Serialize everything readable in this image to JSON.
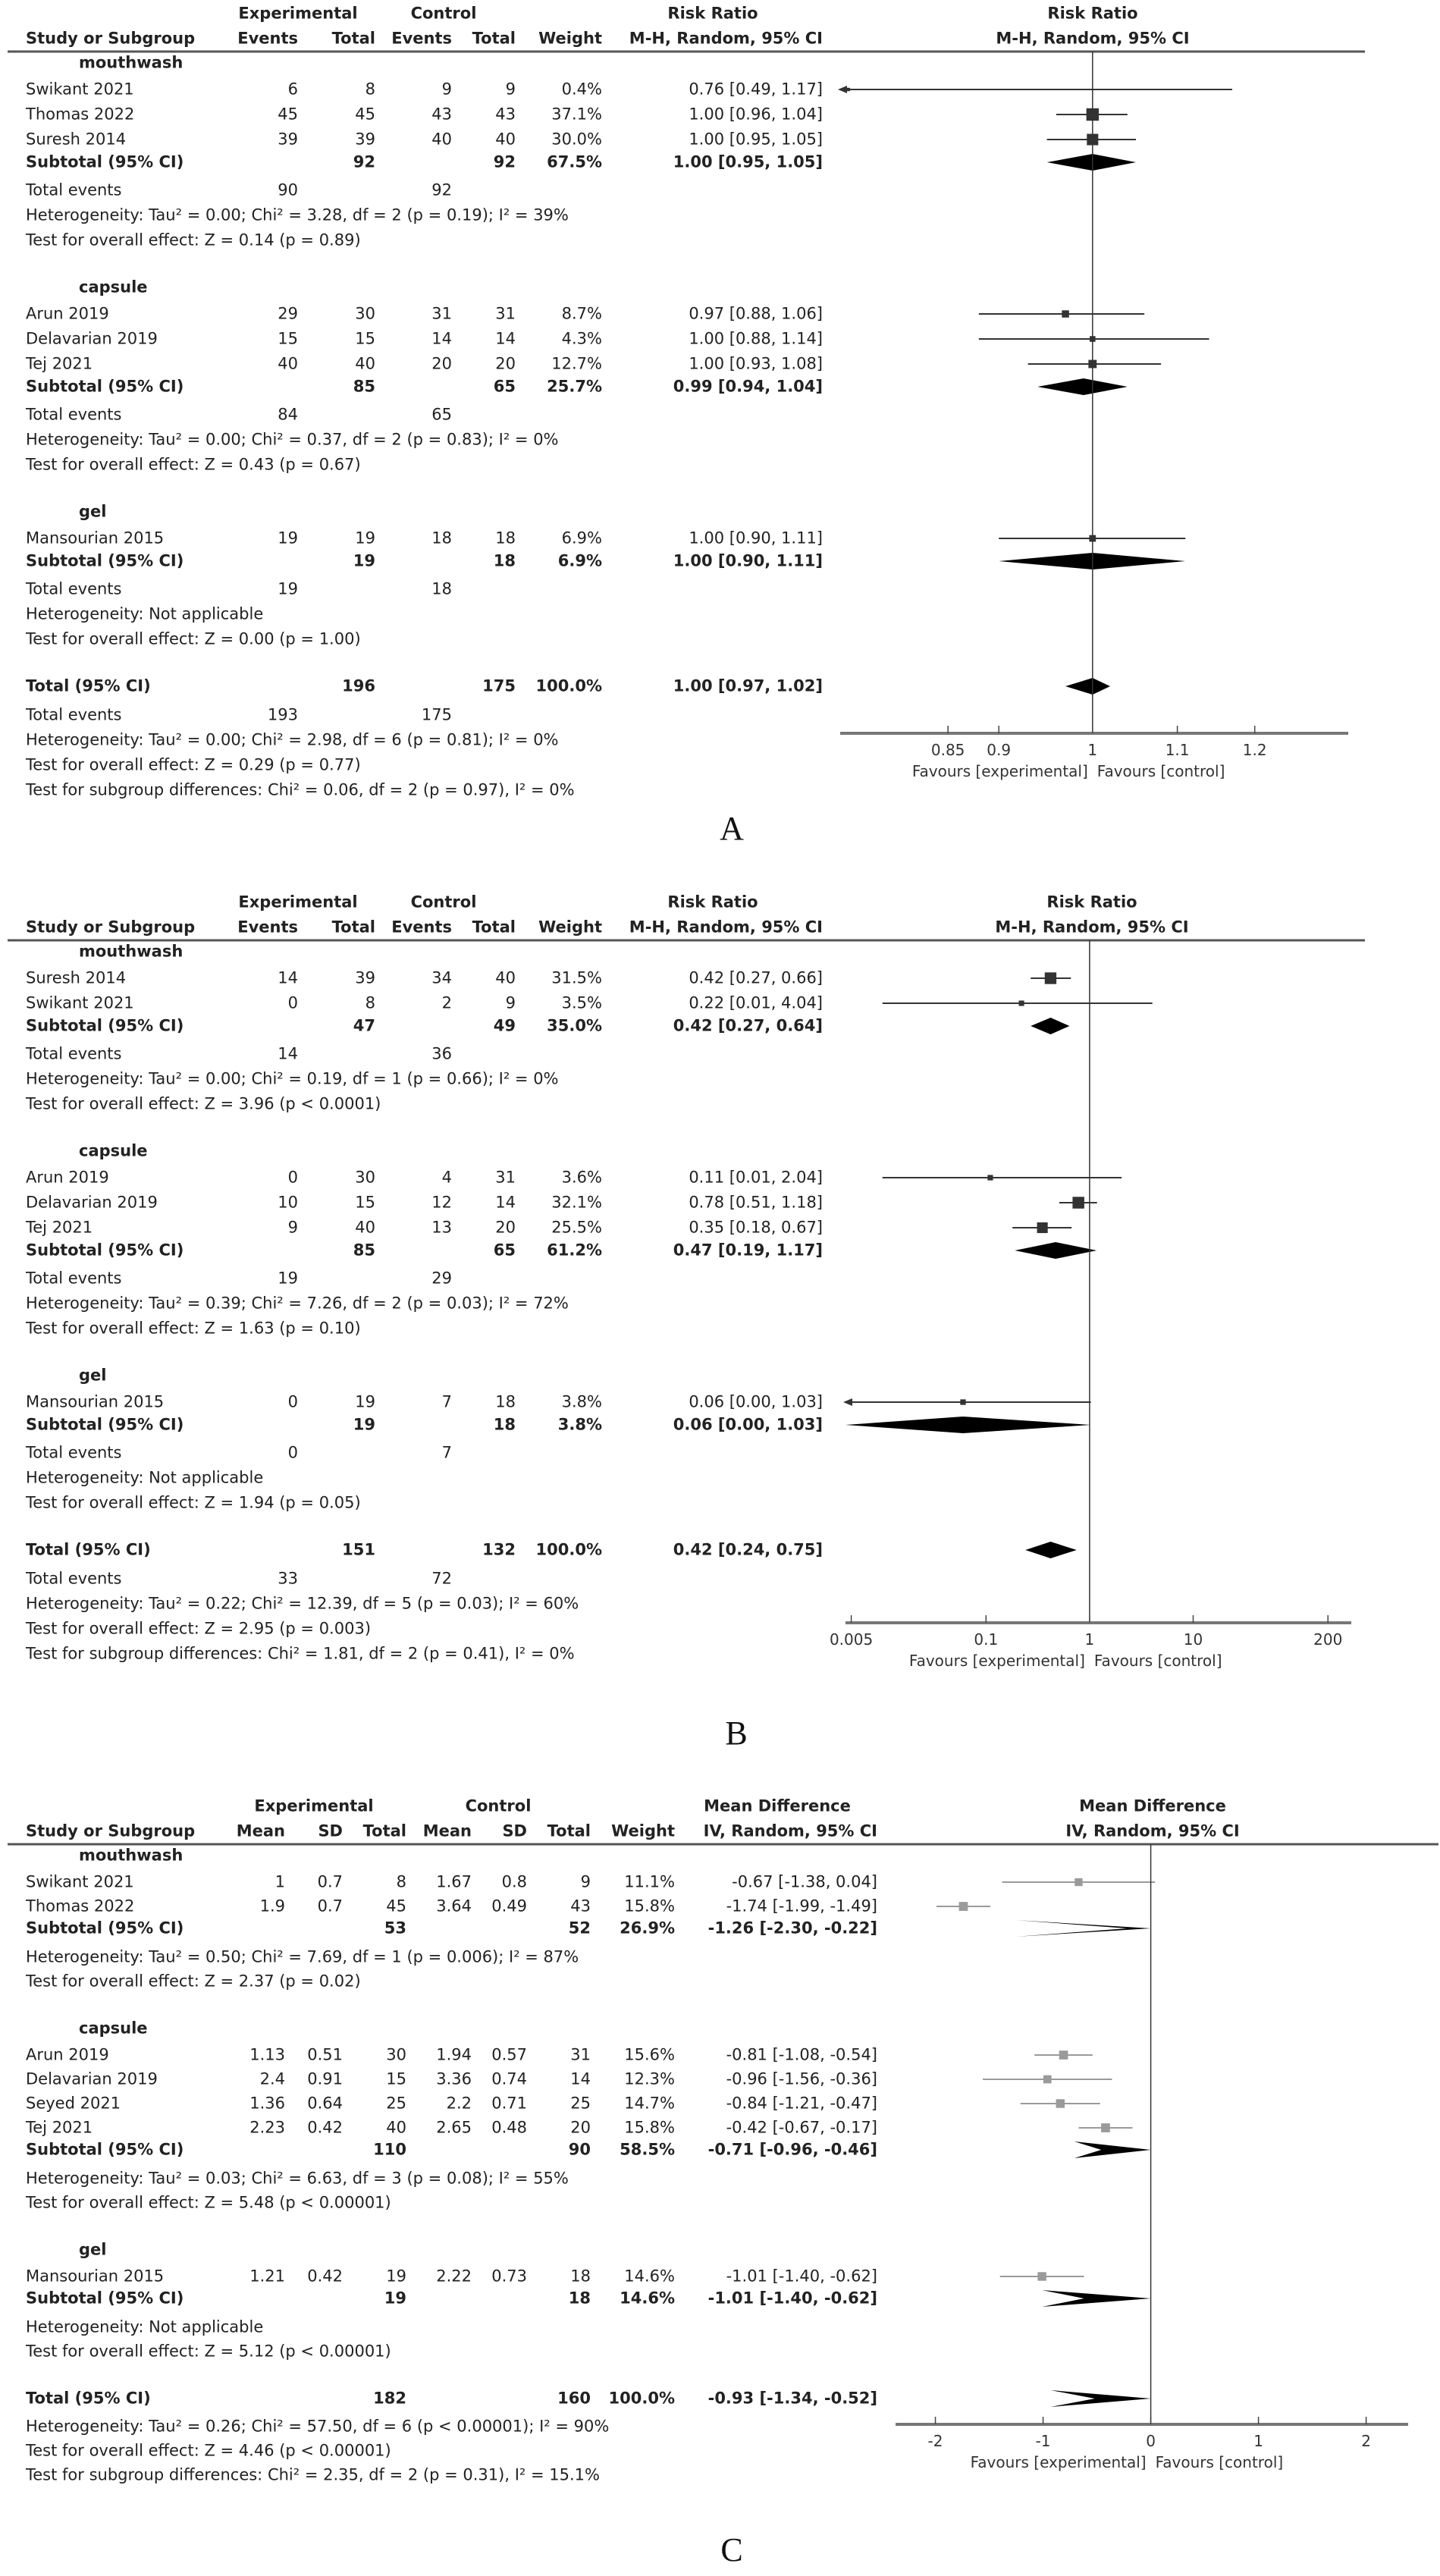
{
  "chart_data": [
    {
      "type": "forest",
      "panel_label": "A",
      "scale": "log",
      "xlim": [
        0.753,
        1.333
      ],
      "ticks": [
        0.85,
        0.9,
        1,
        1.1,
        1.2
      ],
      "tick_labels": [
        "0.85",
        "0.9",
        "1",
        "1.1",
        "1.2"
      ],
      "favours_left": "Favours [experimental]",
      "favours_right": "Favours [control]",
      "header": {
        "study": "Study or Subgroup",
        "group_left": "Experimental",
        "group_right": "Control",
        "measure": "Risk Ratio",
        "method": "M-H, Random, 95% CI",
        "plot_measure": "Risk Ratio",
        "plot_method": "M-H, Random, 95% CI"
      },
      "columns": [
        {
          "key": "e_events",
          "header": "Events"
        },
        {
          "key": "e_total",
          "header": "Total"
        },
        {
          "key": "c_events",
          "header": "Events"
        },
        {
          "key": "c_total",
          "header": "Total"
        },
        {
          "key": "weight",
          "header": "Weight"
        },
        {
          "key": "ci",
          "header": ""
        }
      ],
      "groups": [
        {
          "name": "mouthwash",
          "studies": [
            {
              "name": "Swikant 2021",
              "e_events": "6",
              "e_total": "8",
              "c_events": "9",
              "c_total": "9",
              "weight": "0.4%",
              "ci": "0.76 [0.49, 1.17]",
              "w": 0.4,
              "est": 0.76,
              "lo": 0.49,
              "hi": 1.17
            },
            {
              "name": "Thomas 2022",
              "e_events": "45",
              "e_total": "45",
              "c_events": "43",
              "c_total": "43",
              "weight": "37.1%",
              "ci": "1.00 [0.96, 1.04]",
              "w": 37.1,
              "est": 1.0,
              "lo": 0.96,
              "hi": 1.04
            },
            {
              "name": "Suresh 2014",
              "e_events": "39",
              "e_total": "39",
              "c_events": "40",
              "c_total": "40",
              "weight": "30.0%",
              "ci": "1.00 [0.95, 1.05]",
              "w": 30.0,
              "est": 1.0,
              "lo": 0.95,
              "hi": 1.05
            }
          ],
          "subtotal": {
            "name": "Subtotal (95% CI)",
            "e_total": "92",
            "c_total": "92",
            "weight": "67.5%",
            "ci": "1.00 [0.95, 1.05]",
            "est": 1.0,
            "lo": 0.95,
            "hi": 1.05
          },
          "total_events": {
            "label": "Total events",
            "e": "90",
            "c": "92"
          },
          "heterogeneity": "Heterogeneity: Tau² = 0.00; Chi² = 3.28, df = 2 (p = 0.19); I² = 39%",
          "overall_effect": "Test for overall effect: Z = 0.14 (p = 0.89)"
        },
        {
          "name": "capsule",
          "studies": [
            {
              "name": "Arun 2019",
              "e_events": "29",
              "e_total": "30",
              "c_events": "31",
              "c_total": "31",
              "weight": "8.7%",
              "ci": "0.97 [0.88, 1.06]",
              "w": 8.7,
              "est": 0.97,
              "lo": 0.88,
              "hi": 1.06
            },
            {
              "name": "Delavarian 2019",
              "e_events": "15",
              "e_total": "15",
              "c_events": "14",
              "c_total": "14",
              "weight": "4.3%",
              "ci": "1.00 [0.88, 1.14]",
              "w": 4.3,
              "est": 1.0,
              "lo": 0.88,
              "hi": 1.14
            },
            {
              "name": "Tej 2021",
              "e_events": "40",
              "e_total": "40",
              "c_events": "20",
              "c_total": "20",
              "weight": "12.7%",
              "ci": "1.00 [0.93, 1.08]",
              "w": 12.7,
              "est": 1.0,
              "lo": 0.93,
              "hi": 1.08
            }
          ],
          "subtotal": {
            "name": "Subtotal (95% CI)",
            "e_total": "85",
            "c_total": "65",
            "weight": "25.7%",
            "ci": "0.99 [0.94, 1.04]",
            "est": 0.99,
            "lo": 0.94,
            "hi": 1.04
          },
          "total_events": {
            "label": "Total events",
            "e": "84",
            "c": "65"
          },
          "heterogeneity": "Heterogeneity: Tau² = 0.00; Chi² = 0.37, df = 2 (p = 0.83); I² = 0%",
          "overall_effect": "Test for overall effect: Z = 0.43 (p = 0.67)"
        },
        {
          "name": "gel",
          "studies": [
            {
              "name": "Mansourian 2015",
              "e_events": "19",
              "e_total": "19",
              "c_events": "18",
              "c_total": "18",
              "weight": "6.9%",
              "ci": "1.00 [0.90, 1.11]",
              "w": 6.9,
              "est": 1.0,
              "lo": 0.9,
              "hi": 1.11
            }
          ],
          "subtotal": {
            "name": "Subtotal (95% CI)",
            "e_total": "19",
            "c_total": "18",
            "weight": "6.9%",
            "ci": "1.00 [0.90, 1.11]",
            "est": 1.0,
            "lo": 0.9,
            "hi": 1.11
          },
          "total_events": {
            "label": "Total events",
            "e": "19",
            "c": "18"
          },
          "heterogeneity": "Heterogeneity: Not applicable",
          "overall_effect": "Test for overall effect: Z = 0.00 (p = 1.00)"
        }
      ],
      "total": {
        "name": "Total (95% CI)",
        "e_total": "196",
        "c_total": "175",
        "weight": "100.0%",
        "ci": "1.00 [0.97, 1.02]",
        "est": 1.0,
        "lo": 0.97,
        "hi": 1.02
      },
      "total_events": {
        "label": "Total events",
        "e": "193",
        "c": "175"
      },
      "heterogeneity": "Heterogeneity: Tau² = 0.00; Chi² = 2.98, df = 6 (p = 0.81); I² = 0%",
      "overall_effect": "Test for overall effect: Z = 0.29 (p = 0.77)",
      "subgroup_differences": "Test for subgroup differences: Chi² = 0.06, df = 2 (p = 0.97), I² = 0%"
    },
    {
      "type": "forest",
      "panel_label": "B",
      "scale": "log",
      "xlim": [
        0.0044,
        336
      ],
      "ticks": [
        0.005,
        0.1,
        1,
        10,
        200
      ],
      "tick_labels": [
        "0.005",
        "0.1",
        "1",
        "10",
        "200"
      ],
      "favours_left": "Favours [experimental]",
      "favours_right": "Favours [control]",
      "header": {
        "study": "Study or Subgroup",
        "group_left": "Experimental",
        "group_right": "Control",
        "measure": "Risk Ratio",
        "method": "M-H, Random, 95% CI",
        "plot_measure": "Risk Ratio",
        "plot_method": "M-H, Random, 95% CI"
      },
      "columns": [
        {
          "key": "e_events",
          "header": "Events"
        },
        {
          "key": "e_total",
          "header": "Total"
        },
        {
          "key": "c_events",
          "header": "Events"
        },
        {
          "key": "c_total",
          "header": "Total"
        },
        {
          "key": "weight",
          "header": "Weight"
        },
        {
          "key": "ci",
          "header": ""
        }
      ],
      "groups": [
        {
          "name": "mouthwash",
          "studies": [
            {
              "name": "Suresh 2014",
              "e_events": "14",
              "e_total": "39",
              "c_events": "34",
              "c_total": "40",
              "weight": "31.5%",
              "ci": "0.42 [0.27, 0.66]",
              "w": 31.5,
              "est": 0.42,
              "lo": 0.27,
              "hi": 0.66
            },
            {
              "name": "Swikant 2021",
              "e_events": "0",
              "e_total": "8",
              "c_events": "2",
              "c_total": "9",
              "weight": "3.5%",
              "ci": "0.22 [0.01, 4.04]",
              "w": 3.5,
              "est": 0.22,
              "lo": 0.01,
              "hi": 4.04
            }
          ],
          "subtotal": {
            "name": "Subtotal (95% CI)",
            "e_total": "47",
            "c_total": "49",
            "weight": "35.0%",
            "ci": "0.42 [0.27, 0.64]",
            "est": 0.42,
            "lo": 0.27,
            "hi": 0.64
          },
          "total_events": {
            "label": "Total events",
            "e": "14",
            "c": "36"
          },
          "heterogeneity": "Heterogeneity: Tau² = 0.00; Chi² = 0.19, df = 1 (p = 0.66); I² = 0%",
          "overall_effect": "Test for overall effect: Z = 3.96 (p < 0.0001)"
        },
        {
          "name": "capsule",
          "studies": [
            {
              "name": "Arun 2019",
              "e_events": "0",
              "e_total": "30",
              "c_events": "4",
              "c_total": "31",
              "weight": "3.6%",
              "ci": "0.11 [0.01, 2.04]",
              "w": 3.6,
              "est": 0.11,
              "lo": 0.01,
              "hi": 2.04
            },
            {
              "name": "Delavarian 2019",
              "e_events": "10",
              "e_total": "15",
              "c_events": "12",
              "c_total": "14",
              "weight": "32.1%",
              "ci": "0.78 [0.51, 1.18]",
              "w": 32.1,
              "est": 0.78,
              "lo": 0.51,
              "hi": 1.18
            },
            {
              "name": "Tej 2021",
              "e_events": "9",
              "e_total": "40",
              "c_events": "13",
              "c_total": "20",
              "weight": "25.5%",
              "ci": "0.35 [0.18, 0.67]",
              "w": 25.5,
              "est": 0.35,
              "lo": 0.18,
              "hi": 0.67
            }
          ],
          "subtotal": {
            "name": "Subtotal (95% CI)",
            "e_total": "85",
            "c_total": "65",
            "weight": "61.2%",
            "ci": "0.47 [0.19, 1.17]",
            "est": 0.47,
            "lo": 0.19,
            "hi": 1.17
          },
          "total_events": {
            "label": "Total events",
            "e": "19",
            "c": "29"
          },
          "heterogeneity": "Heterogeneity: Tau² = 0.39; Chi² = 7.26, df = 2 (p = 0.03); I² = 72%",
          "overall_effect": "Test for overall effect: Z = 1.63 (p = 0.10)"
        },
        {
          "name": "gel",
          "studies": [
            {
              "name": "Mansourian 2015",
              "e_events": "0",
              "e_total": "19",
              "c_events": "7",
              "c_total": "18",
              "weight": "3.8%",
              "ci": "0.06 [0.00, 1.03]",
              "w": 3.8,
              "est": 0.06,
              "lo": 0.0,
              "hi": 1.03
            }
          ],
          "subtotal": {
            "name": "Subtotal (95% CI)",
            "e_total": "19",
            "c_total": "18",
            "weight": "3.8%",
            "ci": "0.06 [0.00, 1.03]",
            "est": 0.06,
            "lo": 0.0,
            "hi": 1.03
          },
          "total_events": {
            "label": "Total events",
            "e": "0",
            "c": "7"
          },
          "heterogeneity": "Heterogeneity: Not applicable",
          "overall_effect": "Test for overall effect: Z = 1.94 (p = 0.05)"
        }
      ],
      "total": {
        "name": "Total (95% CI)",
        "e_total": "151",
        "c_total": "132",
        "weight": "100.0%",
        "ci": "0.42 [0.24, 0.75]",
        "est": 0.42,
        "lo": 0.24,
        "hi": 0.75
      },
      "total_events": {
        "label": "Total events",
        "e": "33",
        "c": "72"
      },
      "heterogeneity": "Heterogeneity: Tau² = 0.22; Chi² = 12.39, df = 5 (p = 0.03); I² = 60%",
      "overall_effect": "Test for overall effect: Z = 2.95 (p = 0.003)",
      "subgroup_differences": "Test for subgroup differences: Chi² = 1.81, df = 2 (p = 0.41), I² = 0%"
    },
    {
      "type": "forest",
      "panel_label": "C",
      "scale": "linear",
      "xlim": [
        -2.37,
        2.39
      ],
      "ticks": [
        -2,
        -1,
        0,
        1,
        2
      ],
      "tick_labels": [
        "-2",
        "-1",
        "0",
        "1",
        "2"
      ],
      "favours_left": "Favours [experimental]",
      "favours_right": "Favours [control]",
      "header": {
        "study": "Study or Subgroup",
        "group_left": "Experimental",
        "group_right": "Control",
        "measure": "Mean Difference",
        "method": "IV, Random, 95% CI",
        "plot_measure": "Mean Difference",
        "plot_method": "IV, Random, 95% CI"
      },
      "columns": [
        {
          "key": "e_mean",
          "header": "Mean"
        },
        {
          "key": "e_sd",
          "header": "SD"
        },
        {
          "key": "e_total",
          "header": "Total"
        },
        {
          "key": "c_mean",
          "header": "Mean"
        },
        {
          "key": "c_sd",
          "header": "SD"
        },
        {
          "key": "c_total",
          "header": "Total"
        },
        {
          "key": "weight",
          "header": "Weight"
        },
        {
          "key": "ci",
          "header": ""
        }
      ],
      "groups": [
        {
          "name": "mouthwash",
          "studies": [
            {
              "name": "Swikant 2021",
              "e_mean": "1",
              "e_sd": "0.7",
              "e_total": "8",
              "c_mean": "1.67",
              "c_sd": "0.8",
              "c_total": "9",
              "weight": "11.1%",
              "ci": "-0.67 [-1.38, 0.04]",
              "w": 11.1,
              "est": -0.67,
              "lo": -1.38,
              "hi": 0.04
            },
            {
              "name": "Thomas 2022",
              "e_mean": "1.9",
              "e_sd": "0.7",
              "e_total": "45",
              "c_mean": "3.64",
              "c_sd": "0.49",
              "c_total": "43",
              "weight": "15.8%",
              "ci": "-1.74 [-1.99, -1.49]",
              "w": 15.8,
              "est": -1.74,
              "lo": -1.99,
              "hi": -1.49
            }
          ],
          "subtotal": {
            "name": "Subtotal (95% CI)",
            "e_total": "53",
            "c_total": "52",
            "weight": "26.9%",
            "ci": "-1.26 [-2.30, -0.22]",
            "est": -1.26,
            "lo": -2.3,
            "hi": -0.22
          },
          "heterogeneity": "Heterogeneity: Tau² = 0.50; Chi² = 7.69, df = 1 (p = 0.006); I² = 87%",
          "overall_effect": "Test for overall effect: Z = 2.37 (p = 0.02)"
        },
        {
          "name": "capsule",
          "studies": [
            {
              "name": "Arun 2019",
              "e_mean": "1.13",
              "e_sd": "0.51",
              "e_total": "30",
              "c_mean": "1.94",
              "c_sd": "0.57",
              "c_total": "31",
              "weight": "15.6%",
              "ci": "-0.81 [-1.08, -0.54]",
              "w": 15.6,
              "est": -0.81,
              "lo": -1.08,
              "hi": -0.54
            },
            {
              "name": "Delavarian 2019",
              "e_mean": "2.4",
              "e_sd": "0.91",
              "e_total": "15",
              "c_mean": "3.36",
              "c_sd": "0.74",
              "c_total": "14",
              "weight": "12.3%",
              "ci": "-0.96 [-1.56, -0.36]",
              "w": 12.3,
              "est": -0.96,
              "lo": -1.56,
              "hi": -0.36
            },
            {
              "name": "Seyed 2021",
              "e_mean": "1.36",
              "e_sd": "0.64",
              "e_total": "25",
              "c_mean": "2.2",
              "c_sd": "0.71",
              "c_total": "25",
              "weight": "14.7%",
              "ci": "-0.84 [-1.21, -0.47]",
              "w": 14.7,
              "est": -0.84,
              "lo": -1.21,
              "hi": -0.47
            },
            {
              "name": "Tej 2021",
              "e_mean": "2.23",
              "e_sd": "0.42",
              "e_total": "40",
              "c_mean": "2.65",
              "c_sd": "0.48",
              "c_total": "20",
              "weight": "15.8%",
              "ci": "-0.42 [-0.67, -0.17]",
              "w": 15.8,
              "est": -0.42,
              "lo": -0.67,
              "hi": -0.17
            }
          ],
          "subtotal": {
            "name": "Subtotal (95% CI)",
            "e_total": "110",
            "c_total": "90",
            "weight": "58.5%",
            "ci": "-0.71 [-0.96, -0.46]",
            "est": -0.71,
            "lo": -0.96,
            "hi": -0.46
          },
          "heterogeneity": "Heterogeneity: Tau² = 0.03; Chi² = 6.63, df = 3 (p = 0.08); I² = 55%",
          "overall_effect": "Test for overall effect: Z = 5.48 (p < 0.00001)"
        },
        {
          "name": "gel",
          "studies": [
            {
              "name": "Mansourian 2015",
              "e_mean": "1.21",
              "e_sd": "0.42",
              "e_total": "19",
              "c_mean": "2.22",
              "c_sd": "0.73",
              "c_total": "18",
              "weight": "14.6%",
              "ci": "-1.01 [-1.40, -0.62]",
              "w": 14.6,
              "est": -1.01,
              "lo": -1.4,
              "hi": -0.62
            }
          ],
          "subtotal": {
            "name": "Subtotal (95% CI)",
            "e_total": "19",
            "c_total": "18",
            "weight": "14.6%",
            "ci": "-1.01 [-1.40, -0.62]",
            "est": -1.01,
            "lo": -1.4,
            "hi": -0.62
          },
          "heterogeneity": "Heterogeneity: Not applicable",
          "overall_effect": "Test for overall effect: Z = 5.12 (p < 0.00001)"
        }
      ],
      "total": {
        "name": "Total (95% CI)",
        "e_total": "182",
        "c_total": "160",
        "weight": "100.0%",
        "ci": "-0.93 [-1.34, -0.52]",
        "est": -0.93,
        "lo": -1.34,
        "hi": -0.52
      },
      "heterogeneity": "Heterogeneity: Tau² = 0.26; Chi² = 57.50, df = 6 (p < 0.00001); I² = 90%",
      "overall_effect": "Test for overall effect: Z = 4.46 (p < 0.00001)",
      "subgroup_differences": "Test for subgroup differences: Chi² = 2.35, df = 2 (p = 0.31), I² = 15.1%"
    }
  ],
  "colors": {
    "text": "#222222",
    "marker": "#333333",
    "marker_c": "#9a9a9a",
    "diamond": "#000000",
    "axis": "#777777"
  }
}
